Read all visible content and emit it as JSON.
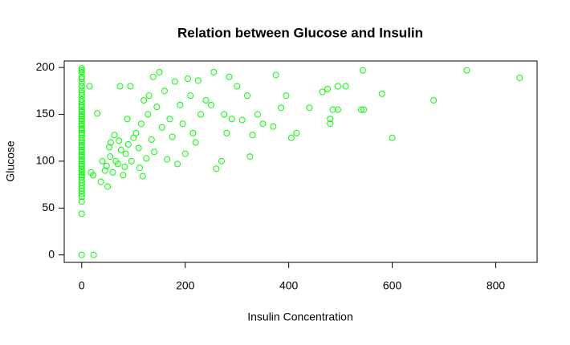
{
  "chart_data": {
    "type": "scatter",
    "title": "Relation between Glucose and Insulin",
    "x_label": "Insulin Concentration",
    "y_label": "Glucose",
    "color": "#00ff00",
    "xlim": [
      -33.84,
      879.84
    ],
    "ylim": [
      -7.96,
      206.96
    ],
    "xticks": [
      0,
      200,
      400,
      600,
      800
    ],
    "yticks": [
      0,
      50,
      100,
      150,
      200
    ],
    "x": [
      0,
      0,
      0,
      0,
      0,
      0,
      0,
      0,
      0,
      0,
      0,
      0,
      0,
      0,
      0,
      0,
      0,
      0,
      0,
      0,
      0,
      0,
      0,
      0,
      0,
      0,
      0,
      0,
      0,
      0,
      0,
      0,
      0,
      0,
      0,
      0,
      0,
      0,
      0,
      0,
      0,
      0,
      0,
      0,
      0,
      0,
      0,
      0,
      0,
      0,
      0,
      0,
      0,
      0,
      23,
      15,
      18,
      22,
      30,
      37,
      40,
      45,
      48,
      50,
      53,
      55,
      56,
      60,
      63,
      66,
      70,
      72,
      74,
      76,
      80,
      83,
      85,
      88,
      90,
      94,
      96,
      100,
      105,
      110,
      112,
      115,
      118,
      120,
      125,
      128,
      130,
      135,
      138,
      140,
      145,
      150,
      155,
      160,
      165,
      170,
      175,
      180,
      185,
      190,
      195,
      200,
      205,
      210,
      215,
      220,
      225,
      230,
      240,
      250,
      255,
      260,
      270,
      275,
      280,
      285,
      290,
      300,
      310,
      320,
      325,
      330,
      340,
      350,
      370,
      375,
      385,
      395,
      405,
      415,
      440,
      465,
      475,
      480,
      480,
      485,
      495,
      495,
      510,
      540,
      545,
      543,
      580,
      600,
      680,
      744,
      846
    ],
    "values": [
      0,
      44,
      57,
      62,
      65,
      68,
      71,
      74,
      77,
      80,
      83,
      85,
      88,
      90,
      92,
      95,
      97,
      100,
      102,
      105,
      107,
      110,
      112,
      115,
      117,
      120,
      122,
      125,
      128,
      130,
      133,
      135,
      138,
      140,
      143,
      145,
      148,
      150,
      153,
      155,
      158,
      160,
      163,
      166,
      170,
      173,
      176,
      180,
      184,
      188,
      190,
      195,
      197,
      199,
      0,
      180,
      88,
      85,
      151,
      78,
      100,
      90,
      95,
      73,
      115,
      105,
      120,
      88,
      128,
      100,
      97,
      122,
      180,
      112,
      85,
      94,
      108,
      145,
      118,
      180,
      100,
      125,
      130,
      114,
      93,
      140,
      84,
      165,
      103,
      150,
      170,
      123,
      190,
      110,
      158,
      195,
      136,
      175,
      102,
      145,
      126,
      185,
      97,
      160,
      140,
      108,
      188,
      170,
      130,
      120,
      186,
      150,
      165,
      160,
      195,
      92,
      100,
      150,
      130,
      190,
      145,
      180,
      144,
      170,
      105,
      128,
      150,
      140,
      137,
      192,
      157,
      170,
      125,
      130,
      157,
      174,
      177,
      140,
      145,
      155,
      155,
      180,
      180,
      155,
      155,
      197,
      172,
      125,
      165,
      197,
      189
    ]
  }
}
